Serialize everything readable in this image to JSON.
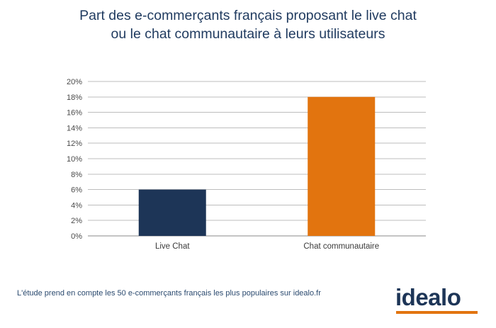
{
  "chart_data": {
    "type": "bar",
    "title_line1": "Part des e-commerçants français proposant le live chat",
    "title_line2": "ou le chat communautaire à leurs utilisateurs",
    "categories": [
      "Live Chat",
      "Chat communautaire"
    ],
    "values": [
      6,
      18
    ],
    "bar_colors": [
      "#1d3557",
      "#e2740f"
    ],
    "ylim": [
      0,
      20
    ],
    "yticks": [
      "0%",
      "2%",
      "4%",
      "6%",
      "8%",
      "10%",
      "12%",
      "14%",
      "16%",
      "18%",
      "20%"
    ],
    "grid": true,
    "xlabel": "",
    "ylabel": ""
  },
  "footnote": "L'étude prend en compte les 50 e-commerçants français les plus populaires sur idealo.fr",
  "logo": {
    "text": "idealo",
    "accent_color": "#e2740f",
    "text_color": "#1d3557"
  }
}
